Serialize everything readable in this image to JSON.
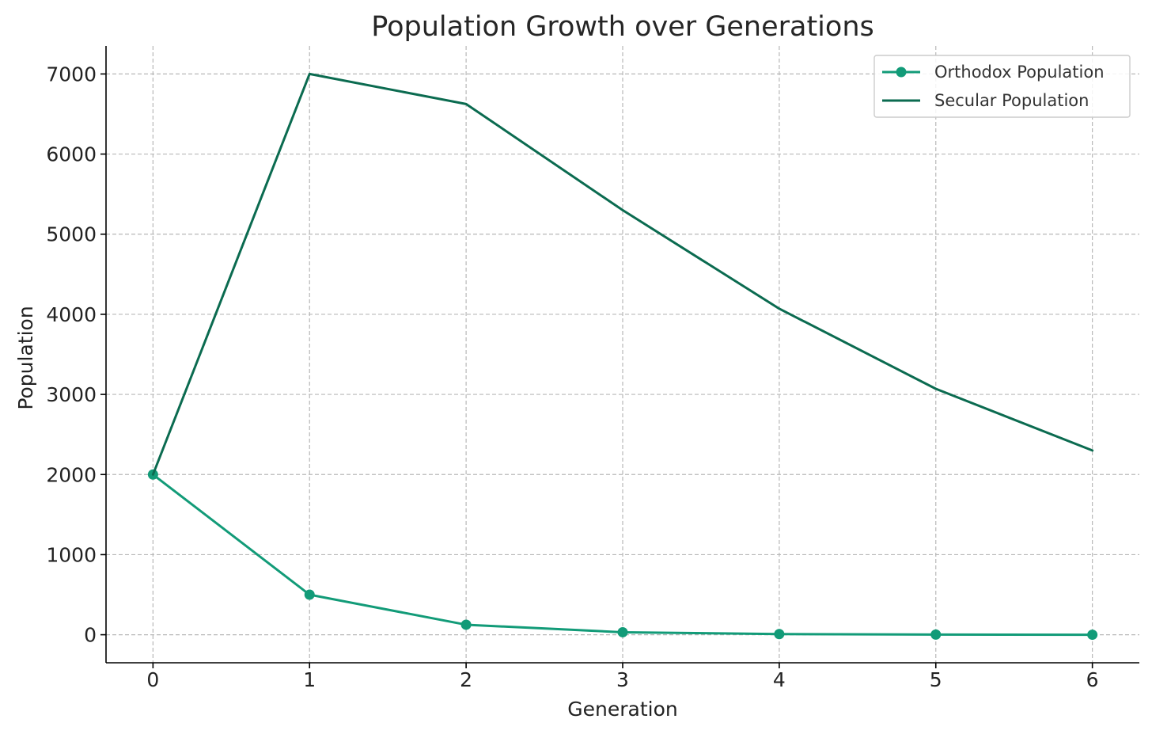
{
  "chart_data": {
    "type": "line",
    "title": "Population Growth over Generations",
    "xlabel": "Generation",
    "ylabel": "Population",
    "x": [
      0,
      1,
      2,
      3,
      4,
      5,
      6
    ],
    "xticks": [
      "0",
      "1",
      "2",
      "3",
      "4",
      "5",
      "6"
    ],
    "yticks": [
      "0",
      "1000",
      "2000",
      "3000",
      "4000",
      "5000",
      "6000",
      "7000"
    ],
    "ytick_values": [
      0,
      1000,
      2000,
      3000,
      4000,
      5000,
      6000,
      7000
    ],
    "xlim": [
      -0.3,
      6.3
    ],
    "ylim": [
      -350,
      7350
    ],
    "grid": true,
    "legend_position": "top-right",
    "series": [
      {
        "name": "Orthodox Population",
        "values": [
          2000,
          500,
          125,
          31,
          8,
          2,
          0
        ],
        "color": "#129b78",
        "marker": "circle"
      },
      {
        "name": "Secular Population",
        "values": [
          2000,
          7000,
          6625,
          5300,
          4070,
          3070,
          2300
        ],
        "color": "#0b6b50",
        "marker": "none"
      }
    ]
  }
}
